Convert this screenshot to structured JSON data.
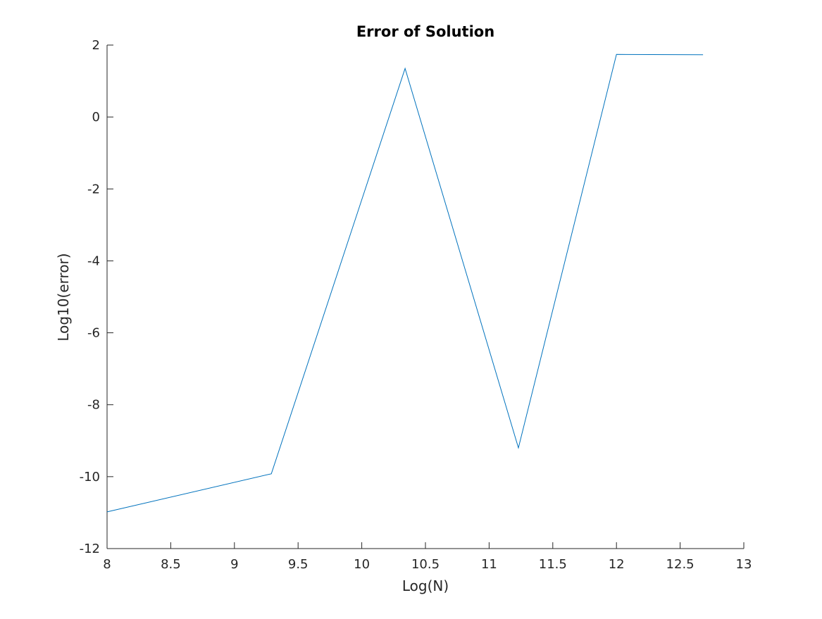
{
  "chart_data": {
    "type": "line",
    "title": "Error of Solution",
    "xlabel": "Log(N)",
    "ylabel": "Log10(error)",
    "xlim": [
      8,
      13
    ],
    "ylim": [
      -12,
      2
    ],
    "xticks": [
      8,
      8.5,
      9,
      9.5,
      10,
      10.5,
      11,
      11.5,
      12,
      12.5,
      13
    ],
    "yticks": [
      -12,
      -10,
      -8,
      -6,
      -4,
      -2,
      0,
      2
    ],
    "xtick_labels": [
      "8",
      "8.5",
      "9",
      "9.5",
      "10",
      "10.5",
      "11",
      "11.5",
      "12",
      "12.5",
      "13"
    ],
    "ytick_labels": [
      "-12",
      "-10",
      "-8",
      "-6",
      "-4",
      "-2",
      "0",
      "2"
    ],
    "grid": false,
    "series": [
      {
        "color": "#0072bd",
        "x": [
          8.0,
          9.29,
          10.34,
          11.23,
          12.0,
          12.68
        ],
        "y": [
          -10.98,
          -9.92,
          1.35,
          -9.2,
          1.74,
          1.73
        ]
      }
    ]
  }
}
